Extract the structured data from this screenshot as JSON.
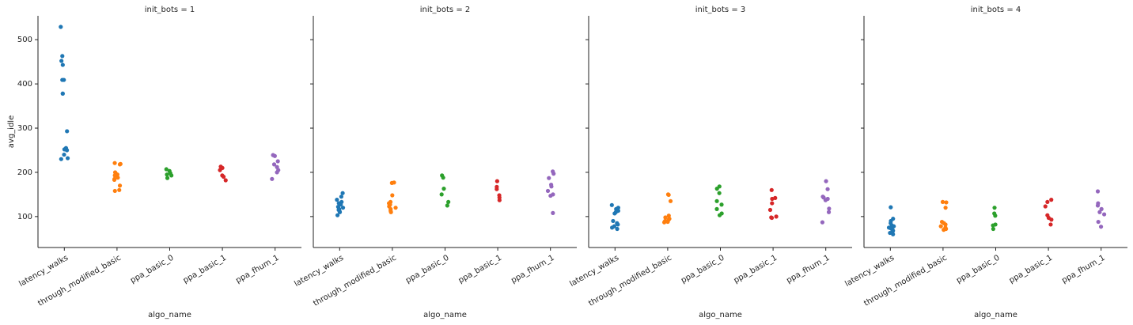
{
  "chart_data": [
    {
      "type": "strip",
      "title": "init_bots = 1",
      "x_label": "algo_name",
      "y_label": "avg_idle",
      "ylim": [
        30,
        554
      ],
      "yticks": [
        100,
        200,
        300,
        400,
        500
      ],
      "categories": [
        "latency_walks",
        "through_modified_basic",
        "ppa_basic_0",
        "ppa_basic_1",
        "ppa_fhum_1"
      ],
      "colors": [
        "#1f77b4",
        "#ff7f0e",
        "#2ca02c",
        "#d62728",
        "#9467bd"
      ],
      "values": [
        [
          529,
          463,
          452,
          443,
          409,
          409,
          378,
          378,
          293,
          255,
          252,
          250,
          240,
          232,
          230
        ],
        [
          221,
          219,
          218,
          200,
          197,
          195,
          193,
          188,
          185,
          183,
          170,
          160,
          158
        ],
        [
          207,
          203,
          198,
          195,
          193,
          187
        ],
        [
          213,
          210,
          205,
          193,
          190,
          182
        ],
        [
          239,
          237,
          225,
          218,
          212,
          205,
          200,
          185
        ]
      ]
    },
    {
      "type": "strip",
      "title": "init_bots = 2",
      "x_label": "algo_name",
      "categories": [
        "latency_walks",
        "through_modified_basic",
        "ppa_basic_0",
        "ppa_basic_1",
        "ppa_fhum_1"
      ],
      "colors": [
        "#1f77b4",
        "#ff7f0e",
        "#2ca02c",
        "#d62728",
        "#9467bd"
      ],
      "values": [
        [
          153,
          145,
          138,
          133,
          130,
          127,
          122,
          120,
          117,
          115,
          112,
          110,
          103
        ],
        [
          177,
          176,
          148,
          133,
          130,
          127,
          123,
          120,
          117,
          113,
          110
        ],
        [
          193,
          188,
          163,
          150,
          133,
          125
        ],
        [
          180,
          167,
          162,
          148,
          143,
          137
        ],
        [
          202,
          197,
          187,
          172,
          168,
          158,
          150,
          147,
          108
        ]
      ]
    },
    {
      "type": "strip",
      "title": "init_bots = 3",
      "x_label": "algo_name",
      "categories": [
        "latency_walks",
        "through_modified_basic",
        "ppa_basic_0",
        "ppa_basic_1",
        "ppa_fhum_1"
      ],
      "colors": [
        "#1f77b4",
        "#ff7f0e",
        "#2ca02c",
        "#d62728",
        "#9467bd"
      ],
      "values": [
        [
          126,
          120,
          117,
          113,
          110,
          107,
          90,
          85,
          82,
          78,
          75,
          72
        ],
        [
          150,
          149,
          135,
          102,
          98,
          95,
          93,
          90,
          88,
          87
        ],
        [
          168,
          163,
          153,
          135,
          127,
          117,
          107,
          103
        ],
        [
          160,
          142,
          140,
          130,
          115,
          100,
          98,
          97
        ],
        [
          180,
          162,
          145,
          143,
          140,
          137,
          118,
          110,
          87
        ]
      ]
    },
    {
      "type": "strip",
      "title": "init_bots = 4",
      "x_label": "algo_name",
      "categories": [
        "latency_walks",
        "through_modified_basic",
        "ppa_basic_0",
        "ppa_basic_1",
        "ppa_fhum_1"
      ],
      "colors": [
        "#1f77b4",
        "#ff7f0e",
        "#2ca02c",
        "#d62728",
        "#9467bd"
      ],
      "values": [
        [
          121,
          95,
          90,
          85,
          80,
          78,
          75,
          73,
          70,
          68,
          65,
          63,
          60
        ],
        [
          133,
          132,
          120,
          88,
          85,
          82,
          78,
          75,
          72,
          70
        ],
        [
          120,
          107,
          102,
          82,
          80,
          72
        ],
        [
          138,
          133,
          123,
          103,
          97,
          93,
          82
        ],
        [
          157,
          130,
          125,
          117,
          110,
          105,
          88,
          77
        ]
      ]
    }
  ]
}
